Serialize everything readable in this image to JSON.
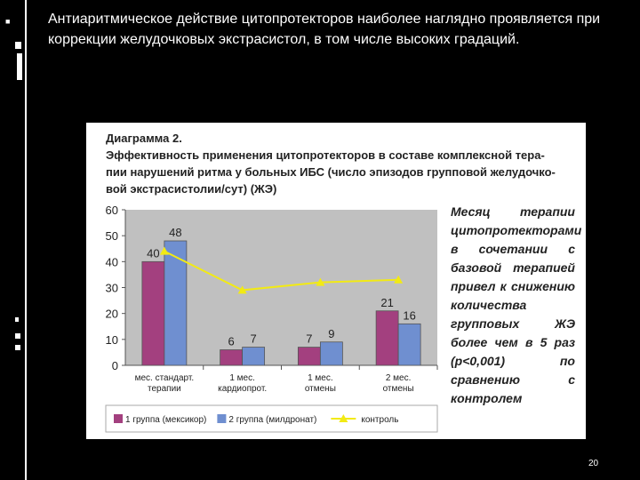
{
  "slide": {
    "bullet": "■",
    "text": "Антиаритмическое действие цитопротекторов наиболее наглядно проявляется при коррекции желудочковых экстрасистол, в том числе высоких градаций.",
    "page_number": "20"
  },
  "diagram": {
    "title_lines": [
      "Диаграмма 2.",
      "Эффективность применения цитопротекторов в составе комплексной тера-",
      "пии  нарушений ритма у больных ИБС (число эпизодов групповой желудочко-",
      "вой экстрасистолии/сут) (ЖЭ)"
    ],
    "side_note": "Месяц терапии цитопротекторами в сочетании с базовой терапией привел к снижению количества групповых ЖЭ более чем в 5 раз (p<0,001) по сравнению с контролем"
  },
  "chart_data": {
    "type": "bar",
    "categories": [
      [
        "мес. стандарт.",
        "терапии"
      ],
      [
        "1 мес.",
        "кардиопрот."
      ],
      [
        "1 мес.",
        "отмены"
      ],
      [
        "2 мес.",
        "отмены"
      ]
    ],
    "series": [
      {
        "name": "1 группа (мексикор)",
        "type": "bar",
        "color": "#a3407f",
        "values": [
          40,
          6,
          7,
          21
        ],
        "labels": [
          "40",
          "6",
          "7",
          "21"
        ]
      },
      {
        "name": "2 группа (милдронат)",
        "type": "bar",
        "color": "#6f8fd0",
        "values": [
          48,
          7,
          9,
          16
        ],
        "labels": [
          "48",
          "7",
          "9",
          "16"
        ]
      },
      {
        "name": "контроль",
        "type": "line",
        "color": "#f2ea14",
        "values": [
          44,
          29,
          32,
          33
        ]
      }
    ],
    "ylim": [
      0,
      60
    ],
    "yticks": [
      "0",
      "10",
      "20",
      "30",
      "40",
      "50",
      "60"
    ],
    "grid": false,
    "legend": "bottom",
    "plot_background": "#c0c0c0"
  }
}
